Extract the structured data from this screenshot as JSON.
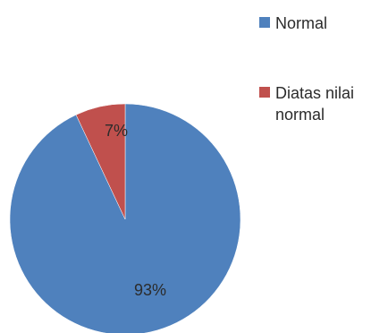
{
  "chart_data": {
    "type": "pie",
    "categories": [
      "Normal",
      "Diatas nilai normal"
    ],
    "values": [
      93,
      7
    ],
    "data_labels": [
      "93%",
      "7%"
    ],
    "colors": [
      "#4f81bd",
      "#c0504d"
    ],
    "start_angle_deg": 0,
    "direction": "clockwise",
    "legend_position": "right",
    "title": ""
  }
}
